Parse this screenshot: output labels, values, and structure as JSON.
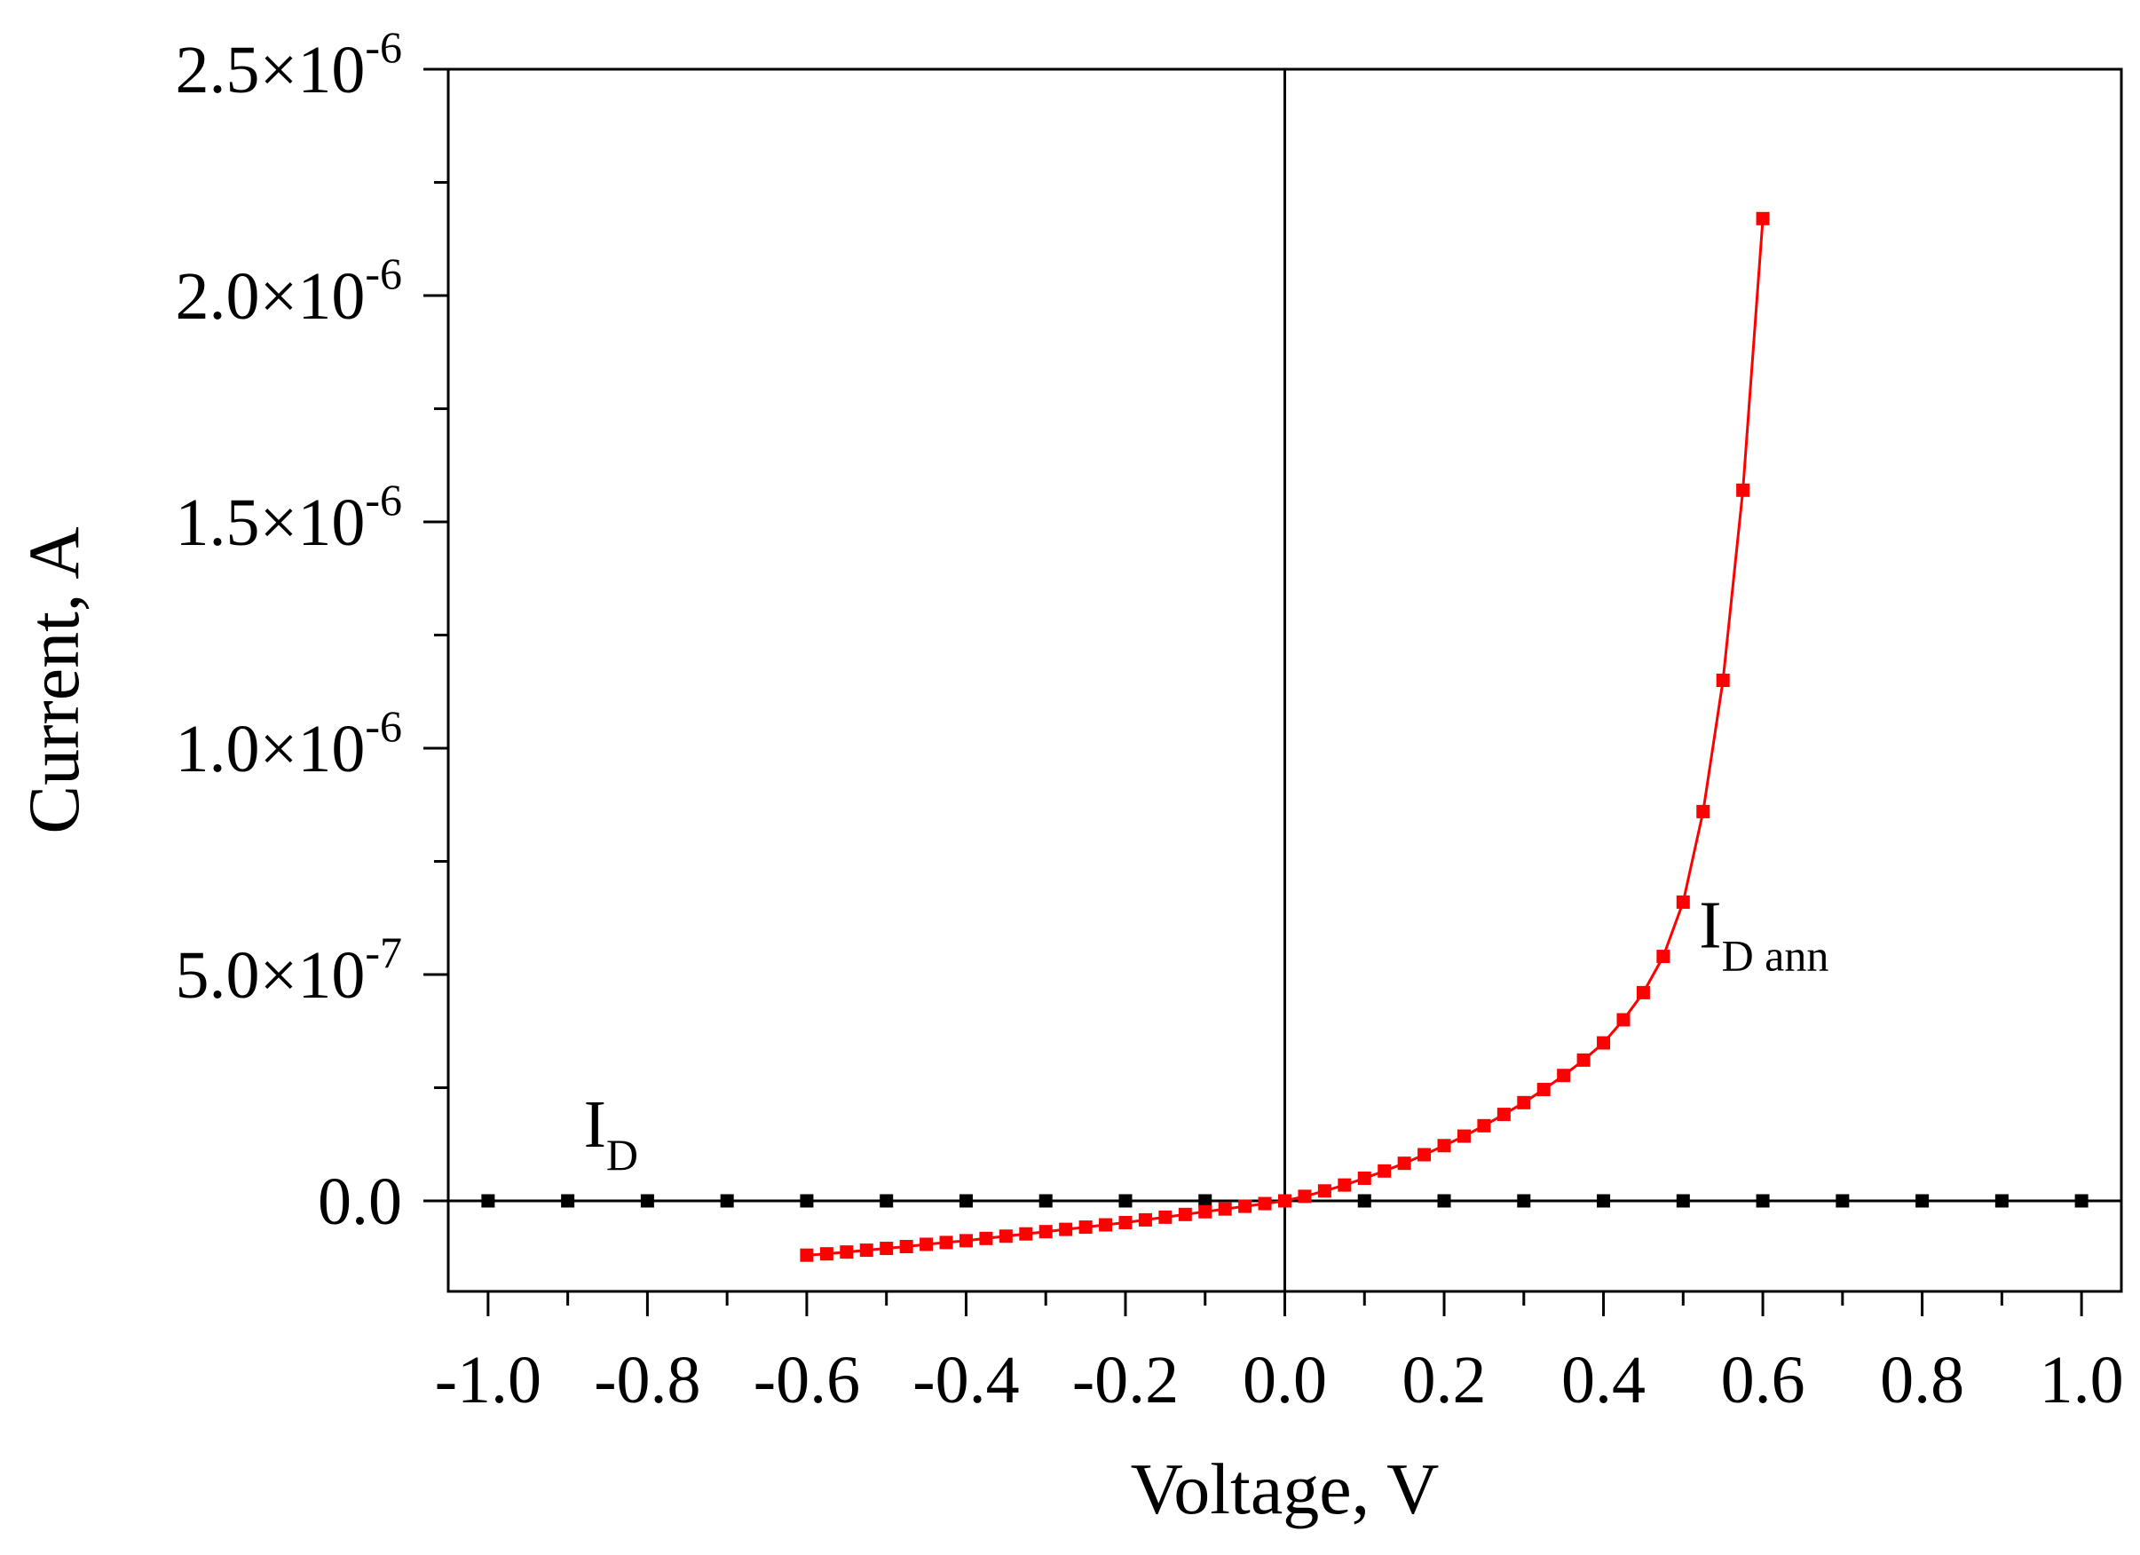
{
  "chart_data": {
    "type": "line",
    "xlabel": "Voltage, V",
    "ylabel": "Current, A",
    "xlim": [
      -1.05,
      1.05
    ],
    "ylim": [
      -2e-07,
      2.5e-06
    ],
    "x_ticks": [
      -1.0,
      -0.8,
      -0.6,
      -0.4,
      -0.2,
      0.0,
      0.2,
      0.4,
      0.6,
      0.8,
      1.0
    ],
    "x_tick_labels": [
      "-1.0",
      "-0.8",
      "-0.6",
      "-0.4",
      "-0.2",
      "0.0",
      "0.2",
      "0.4",
      "0.6",
      "0.8",
      "1.0"
    ],
    "y_ticks": [
      0,
      5e-07,
      1e-06,
      1.5e-06,
      2e-06,
      2.5e-06
    ],
    "y_tick_labels": [
      {
        "mantissa": "0.0",
        "exponent": ""
      },
      {
        "mantissa": "5.0×10",
        "exponent": "-7"
      },
      {
        "mantissa": "1.0×10",
        "exponent": "-6"
      },
      {
        "mantissa": "1.5×10",
        "exponent": "-6"
      },
      {
        "mantissa": "2.0×10",
        "exponent": "-6"
      },
      {
        "mantissa": "2.5×10",
        "exponent": "-6"
      }
    ],
    "reference_lines": {
      "x": 0.0,
      "y": 0.0
    },
    "grid": false,
    "legend": "none",
    "annotations": [
      {
        "main": "I",
        "sub": "D",
        "x": -0.88,
        "y": 1.2e-07
      },
      {
        "main": "I",
        "sub": "D ann",
        "x": 0.52,
        "y": 5.6e-07
      }
    ],
    "series": [
      {
        "color": "#000000",
        "marker": "square",
        "x": [
          -1.0,
          -0.9,
          -0.8,
          -0.7,
          -0.6,
          -0.5,
          -0.4,
          -0.3,
          -0.2,
          -0.1,
          0.0,
          0.1,
          0.2,
          0.3,
          0.4,
          0.5,
          0.6,
          0.7,
          0.8,
          0.9,
          1.0
        ],
        "y": [
          0,
          0,
          0,
          0,
          0,
          0,
          0,
          0,
          0,
          0,
          0,
          0,
          0,
          0,
          0,
          0,
          0,
          0,
          0,
          0,
          0
        ]
      },
      {
        "color": "#ff0000",
        "marker": "square",
        "x": [
          -0.6,
          -0.575,
          -0.55,
          -0.525,
          -0.5,
          -0.475,
          -0.45,
          -0.425,
          -0.4,
          -0.375,
          -0.35,
          -0.325,
          -0.3,
          -0.275,
          -0.25,
          -0.225,
          -0.2,
          -0.175,
          -0.15,
          -0.125,
          -0.1,
          -0.075,
          -0.05,
          -0.025,
          0.0,
          0.025,
          0.05,
          0.075,
          0.1,
          0.125,
          0.15,
          0.175,
          0.2,
          0.225,
          0.25,
          0.275,
          0.3,
          0.325,
          0.35,
          0.375,
          0.4,
          0.425,
          0.45,
          0.475,
          0.5,
          0.525,
          0.55,
          0.575,
          0.6
        ],
        "y": [
          -1.2e-07,
          -1.17e-07,
          -1.13e-07,
          -1.09e-07,
          -1.05e-07,
          -1.01e-07,
          -9.6e-08,
          -9.2e-08,
          -8.8e-08,
          -8.3e-08,
          -7.8e-08,
          -7.3e-08,
          -6.8e-08,
          -6.3e-08,
          -5.8e-08,
          -5.3e-08,
          -4.8e-08,
          -4.2e-08,
          -3.6e-08,
          -3e-08,
          -2.4e-08,
          -1.8e-08,
          -1.2e-08,
          -6e-09,
          0,
          1e-08,
          2.2e-08,
          3.5e-08,
          5e-08,
          6.6e-08,
          8.3e-08,
          1.02e-07,
          1.22e-07,
          1.43e-07,
          1.66e-07,
          1.91e-07,
          2.17e-07,
          2.46e-07,
          2.77e-07,
          3.11e-07,
          3.49e-07,
          4e-07,
          4.6e-07,
          5.4e-07,
          6.6e-07,
          8.6e-07,
          1.15e-06,
          1.57e-06,
          2.17e-06
        ]
      }
    ]
  }
}
